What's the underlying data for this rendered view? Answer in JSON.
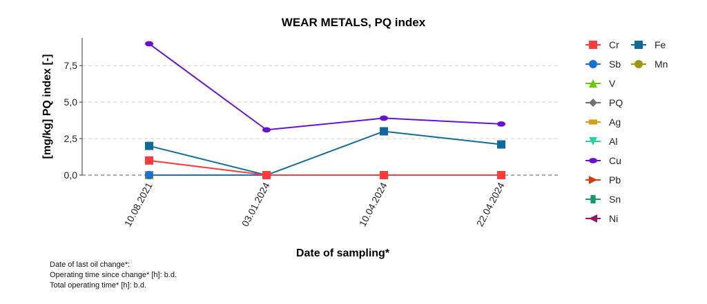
{
  "chart_data": {
    "type": "line",
    "title": "WEAR METALS, PQ index",
    "xlabel": "Date of sampling*",
    "ylabel": "[mg/kg] PQ index [-]",
    "ylim": [
      0,
      9.4
    ],
    "yticks": [
      0,
      2.5,
      5,
      7.5
    ],
    "ytick_labels": [
      "0,0",
      "2,5",
      "5,0",
      "7,5"
    ],
    "grid": "horizontal dashed",
    "legend_position": "right",
    "categories": [
      "10.08.2021",
      "03.01.2024",
      "10.04.2024",
      "22.04.2024"
    ],
    "series": [
      {
        "name": "Cr",
        "color": "#ff3b3b",
        "marker": "square",
        "values": [
          1.0,
          0,
          0,
          0
        ]
      },
      {
        "name": "Fe",
        "color": "#0f6a9c",
        "marker": "square",
        "values": [
          2.0,
          0,
          3.0,
          2.1
        ]
      },
      {
        "name": "Sb",
        "color": "#1a6fd6",
        "marker": "circle",
        "values": [
          0,
          0,
          0,
          0
        ]
      },
      {
        "name": "Mn",
        "color": "#9a9a10",
        "marker": "circle",
        "values": [
          0,
          0,
          0,
          0
        ]
      },
      {
        "name": "V",
        "color": "#66cc00",
        "marker": "triangle-up",
        "values": [
          0,
          0,
          0,
          0
        ]
      },
      {
        "name": "PQ",
        "color": "#707070",
        "marker": "diamond",
        "values": [
          0,
          0,
          0,
          0
        ]
      },
      {
        "name": "Ag",
        "color": "#d4a012",
        "marker": "rect",
        "values": [
          0,
          0,
          0,
          0
        ]
      },
      {
        "name": "Al",
        "color": "#1ed6a0",
        "marker": "triangle-down",
        "values": [
          0,
          0,
          0,
          0
        ]
      },
      {
        "name": "Cu",
        "color": "#6a0fd6",
        "marker": "ellipse",
        "values": [
          9.0,
          3.1,
          3.9,
          3.5
        ]
      },
      {
        "name": "Pb",
        "color": "#d63a0a",
        "marker": "triangle-right",
        "values": [
          0,
          0,
          0,
          0
        ]
      },
      {
        "name": "Sn",
        "color": "#129a6a",
        "marker": "vrect",
        "values": [
          0,
          0,
          0,
          0
        ]
      },
      {
        "name": "Ni",
        "color": "#9a0f6a",
        "marker": "triangle-left",
        "values": [
          0,
          0,
          0,
          0
        ]
      }
    ]
  },
  "notes": {
    "last_oil_change": "Date of last oil change*:",
    "operating_time_since_change": "Operating time since change* [h]: b.d.",
    "total_operating_time": "Total operating time* [h]: b.d."
  }
}
